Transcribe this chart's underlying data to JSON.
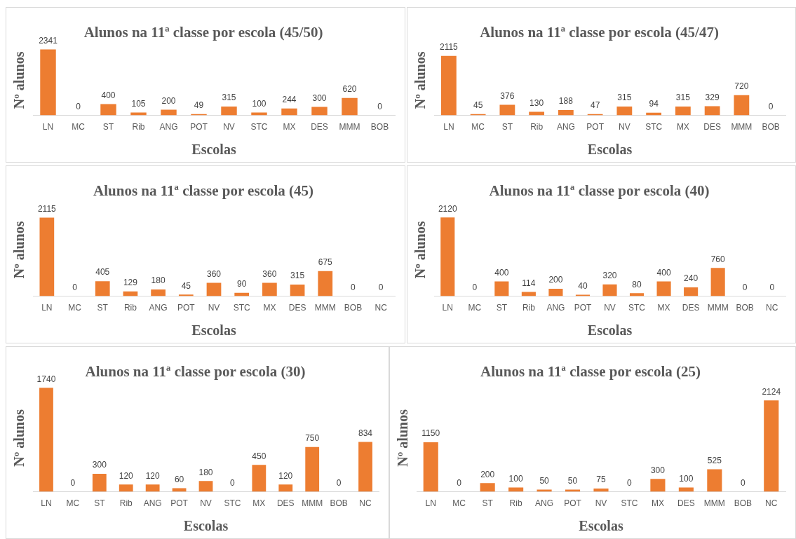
{
  "chart_data": [
    {
      "type": "bar",
      "title": "Alunos na 11ª classe por escola (45/50)",
      "xlabel": "Escolas",
      "ylabel": "Nº alunos",
      "categories": [
        "LN",
        "MC",
        "ST",
        "Rib",
        "ANG",
        "POT",
        "NV",
        "STC",
        "MX",
        "DES",
        "MMM",
        "BOB"
      ],
      "values": [
        2341,
        0,
        400,
        105,
        200,
        49,
        315,
        100,
        244,
        300,
        620,
        0
      ],
      "color": "#ed7d31",
      "data_labels": true,
      "tick_labels": "x"
    },
    {
      "type": "bar",
      "title": "Alunos na 11ª classe por escola (45/47)",
      "xlabel": "Escolas",
      "ylabel": "Nº alunos",
      "categories": [
        "LN",
        "MC",
        "ST",
        "Rib",
        "ANG",
        "POT",
        "NV",
        "STC",
        "MX",
        "DES",
        "MMM",
        "BOB"
      ],
      "values": [
        2115,
        45,
        376,
        130,
        188,
        47,
        315,
        94,
        315,
        329,
        720,
        0
      ],
      "color": "#ed7d31",
      "data_labels": true,
      "tick_labels": "x"
    },
    {
      "type": "bar",
      "title": "Alunos na 11ª classe por escola (45)",
      "xlabel": "Escolas",
      "ylabel": "Nº alunos",
      "categories": [
        "LN",
        "MC",
        "ST",
        "Rib",
        "ANG",
        "POT",
        "NV",
        "STC",
        "MX",
        "DES",
        "MMM",
        "BOB",
        "NC"
      ],
      "values": [
        2115,
        0,
        405,
        129,
        180,
        45,
        360,
        90,
        360,
        315,
        675,
        0,
        0
      ],
      "color": "#ed7d31",
      "data_labels": true,
      "tick_labels": "x"
    },
    {
      "type": "bar",
      "title": "Alunos na 11ª classe por escola (40)",
      "xlabel": "Escolas",
      "ylabel": "Nº alunos",
      "categories": [
        "LN",
        "MC",
        "ST",
        "Rib",
        "ANG",
        "POT",
        "NV",
        "STC",
        "MX",
        "DES",
        "MMM",
        "BOB",
        "NC"
      ],
      "values": [
        2120,
        0,
        400,
        114,
        200,
        40,
        320,
        80,
        400,
        240,
        760,
        0,
        0
      ],
      "color": "#ed7d31",
      "data_labels": true,
      "tick_labels": "x"
    },
    {
      "type": "bar",
      "title": "Alunos na 11ª classe por escola (30)",
      "xlabel": "Escolas",
      "ylabel": "Nº alunos",
      "categories": [
        "LN",
        "MC",
        "ST",
        "Rib",
        "ANG",
        "POT",
        "NV",
        "STC",
        "MX",
        "DES",
        "MMM",
        "BOB",
        "NC"
      ],
      "values": [
        1740,
        0,
        300,
        120,
        120,
        60,
        180,
        0,
        450,
        120,
        750,
        0,
        834
      ],
      "color": "#ed7d31",
      "data_labels": true,
      "tick_labels": "x"
    },
    {
      "type": "bar",
      "title": "Alunos na 11ª classe por escola (25)",
      "xlabel": "Escolas",
      "ylabel": "Nº alunos",
      "categories": [
        "LN",
        "MC",
        "ST",
        "Rib",
        "ANG",
        "POT",
        "NV",
        "STC",
        "MX",
        "DES",
        "MMM",
        "BOB",
        "NC"
      ],
      "values": [
        1150,
        0,
        200,
        100,
        50,
        50,
        75,
        0,
        300,
        100,
        525,
        0,
        2124
      ],
      "color": "#ed7d31",
      "data_labels": true,
      "tick_labels": "x"
    }
  ]
}
